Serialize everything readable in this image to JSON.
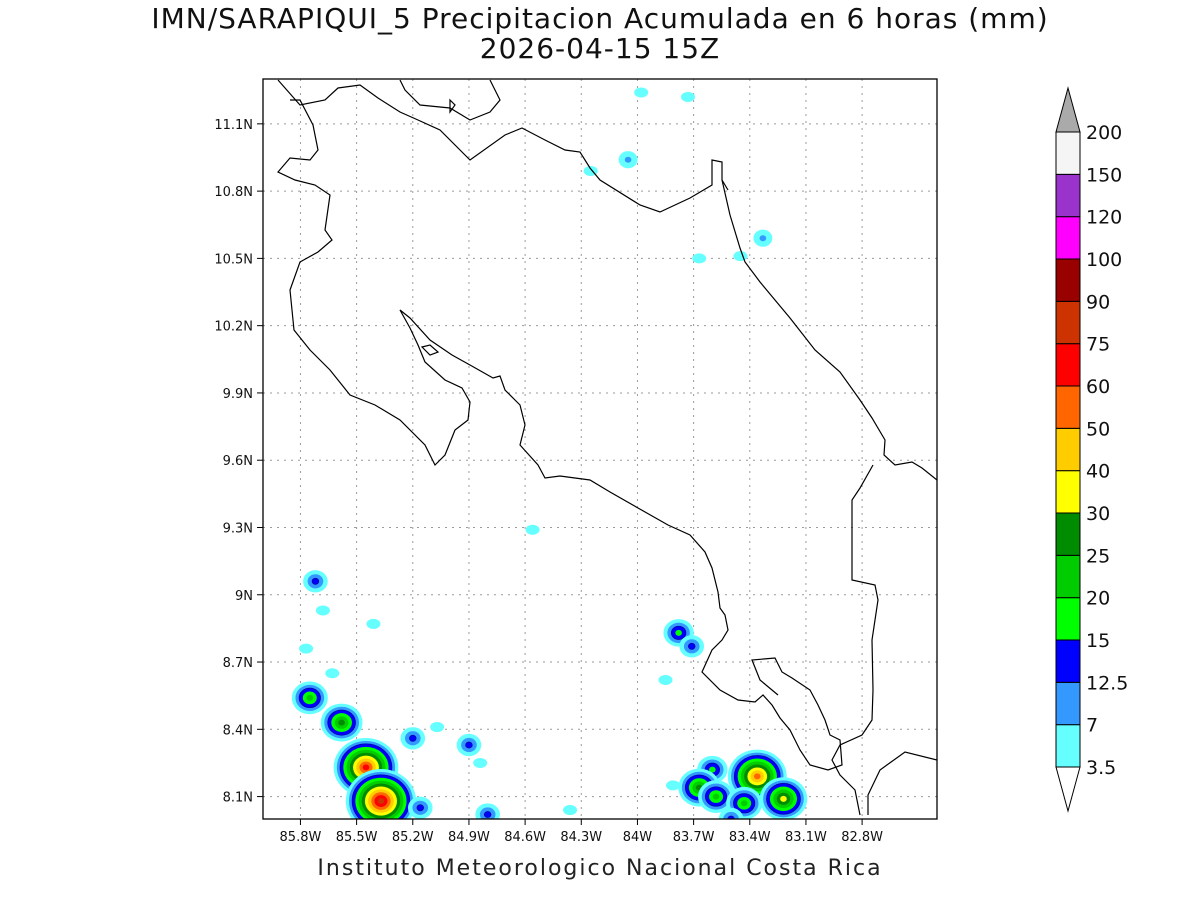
{
  "title_line1": "IMN/SARAPIQUI_5 Precipitacion Acumulada en 6 horas (mm)",
  "title_line2": "2026-04-15 15Z",
  "credit": "Instituto Meteorologico Nacional Costa Rica",
  "map": {
    "lon_range": [
      -86.0,
      -82.4
    ],
    "lat_range": [
      8.0,
      11.3
    ],
    "lat_ticks": [
      {
        "value": 11.1,
        "label": "11.1N"
      },
      {
        "value": 10.8,
        "label": "10.8N"
      },
      {
        "value": 10.5,
        "label": "10.5N"
      },
      {
        "value": 10.2,
        "label": "10.2N"
      },
      {
        "value": 9.9,
        "label": "9.9N"
      },
      {
        "value": 9.6,
        "label": "9.6N"
      },
      {
        "value": 9.3,
        "label": "9.3N"
      },
      {
        "value": 9.0,
        "label": "9N"
      },
      {
        "value": 8.7,
        "label": "8.7N"
      },
      {
        "value": 8.4,
        "label": "8.4N"
      },
      {
        "value": 8.1,
        "label": "8.1N"
      }
    ],
    "lon_ticks": [
      {
        "value": -85.8,
        "label": "85.8W"
      },
      {
        "value": -85.5,
        "label": "85.5W"
      },
      {
        "value": -85.2,
        "label": "85.2W"
      },
      {
        "value": -84.9,
        "label": "84.9W"
      },
      {
        "value": -84.6,
        "label": "84.6W"
      },
      {
        "value": -84.3,
        "label": "84.3W"
      },
      {
        "value": -84.0,
        "label": "84W"
      },
      {
        "value": -83.7,
        "label": "83.7W"
      },
      {
        "value": -83.4,
        "label": "83.4W"
      },
      {
        "value": -83.1,
        "label": "83.1W"
      },
      {
        "value": -82.8,
        "label": "82.8W"
      }
    ],
    "grid": true
  },
  "colorbar": {
    "levels": [
      {
        "label": "3.5",
        "color": "#66ffff"
      },
      {
        "label": "7",
        "color": "#3399ff"
      },
      {
        "label": "12.5",
        "color": "#0000ff"
      },
      {
        "label": "15",
        "color": "#00ff00"
      },
      {
        "label": "20",
        "color": "#00cc00"
      },
      {
        "label": "25",
        "color": "#008c00"
      },
      {
        "label": "30",
        "color": "#ffff00"
      },
      {
        "label": "40",
        "color": "#ffcc00"
      },
      {
        "label": "50",
        "color": "#ff6600"
      },
      {
        "label": "60",
        "color": "#ff0000"
      },
      {
        "label": "75",
        "color": "#cc3300"
      },
      {
        "label": "90",
        "color": "#990000"
      },
      {
        "label": "100",
        "color": "#ff00ff"
      },
      {
        "label": "120",
        "color": "#9933cc"
      },
      {
        "label": "150",
        "color": "#f5f5f5"
      },
      {
        "label": "200",
        "color": "#aaaaaa"
      }
    ]
  },
  "precip_cells": [
    {
      "lon": -83.98,
      "lat": 11.24,
      "mm": 3.5
    },
    {
      "lon": -83.73,
      "lat": 11.22,
      "mm": 3.5
    },
    {
      "lon": -84.05,
      "lat": 10.94,
      "mm": 7
    },
    {
      "lon": -84.25,
      "lat": 10.89,
      "mm": 3.5
    },
    {
      "lon": -83.33,
      "lat": 10.59,
      "mm": 7
    },
    {
      "lon": -83.45,
      "lat": 10.51,
      "mm": 3.5
    },
    {
      "lon": -83.67,
      "lat": 10.5,
      "mm": 3.5
    },
    {
      "lon": -84.56,
      "lat": 9.29,
      "mm": 3.5
    },
    {
      "lon": -85.72,
      "lat": 9.06,
      "mm": 12.5
    },
    {
      "lon": -85.68,
      "lat": 8.93,
      "mm": 3.5
    },
    {
      "lon": -85.41,
      "lat": 8.87,
      "mm": 3.5
    },
    {
      "lon": -85.77,
      "lat": 8.76,
      "mm": 3.5
    },
    {
      "lon": -85.63,
      "lat": 8.65,
      "mm": 3.5
    },
    {
      "lon": -83.78,
      "lat": 8.83,
      "mm": 15
    },
    {
      "lon": -83.71,
      "lat": 8.77,
      "mm": 12.5
    },
    {
      "lon": -83.85,
      "lat": 8.62,
      "mm": 3.5
    },
    {
      "lon": -85.75,
      "lat": 8.54,
      "mm": 20
    },
    {
      "lon": -85.58,
      "lat": 8.43,
      "mm": 25
    },
    {
      "lon": -85.2,
      "lat": 8.36,
      "mm": 12.5
    },
    {
      "lon": -84.9,
      "lat": 8.33,
      "mm": 12.5
    },
    {
      "lon": -85.07,
      "lat": 8.41,
      "mm": 3.5
    },
    {
      "lon": -84.84,
      "lat": 8.25,
      "mm": 3.5
    },
    {
      "lon": -85.45,
      "lat": 8.23,
      "mm": 60
    },
    {
      "lon": -85.37,
      "lat": 8.08,
      "mm": 75
    },
    {
      "lon": -85.16,
      "lat": 8.05,
      "mm": 12.5
    },
    {
      "lon": -84.8,
      "lat": 8.02,
      "mm": 12.5
    },
    {
      "lon": -84.36,
      "lat": 8.04,
      "mm": 3.5
    },
    {
      "lon": -83.6,
      "lat": 8.22,
      "mm": 15
    },
    {
      "lon": -83.67,
      "lat": 8.14,
      "mm": 25
    },
    {
      "lon": -83.58,
      "lat": 8.1,
      "mm": 20
    },
    {
      "lon": -83.81,
      "lat": 8.15,
      "mm": 3.5
    },
    {
      "lon": -83.36,
      "lat": 8.19,
      "mm": 50
    },
    {
      "lon": -83.22,
      "lat": 8.09,
      "mm": 30
    },
    {
      "lon": -83.43,
      "lat": 8.07,
      "mm": 20
    },
    {
      "lon": -83.5,
      "lat": 8.0,
      "mm": 12.5
    }
  ]
}
